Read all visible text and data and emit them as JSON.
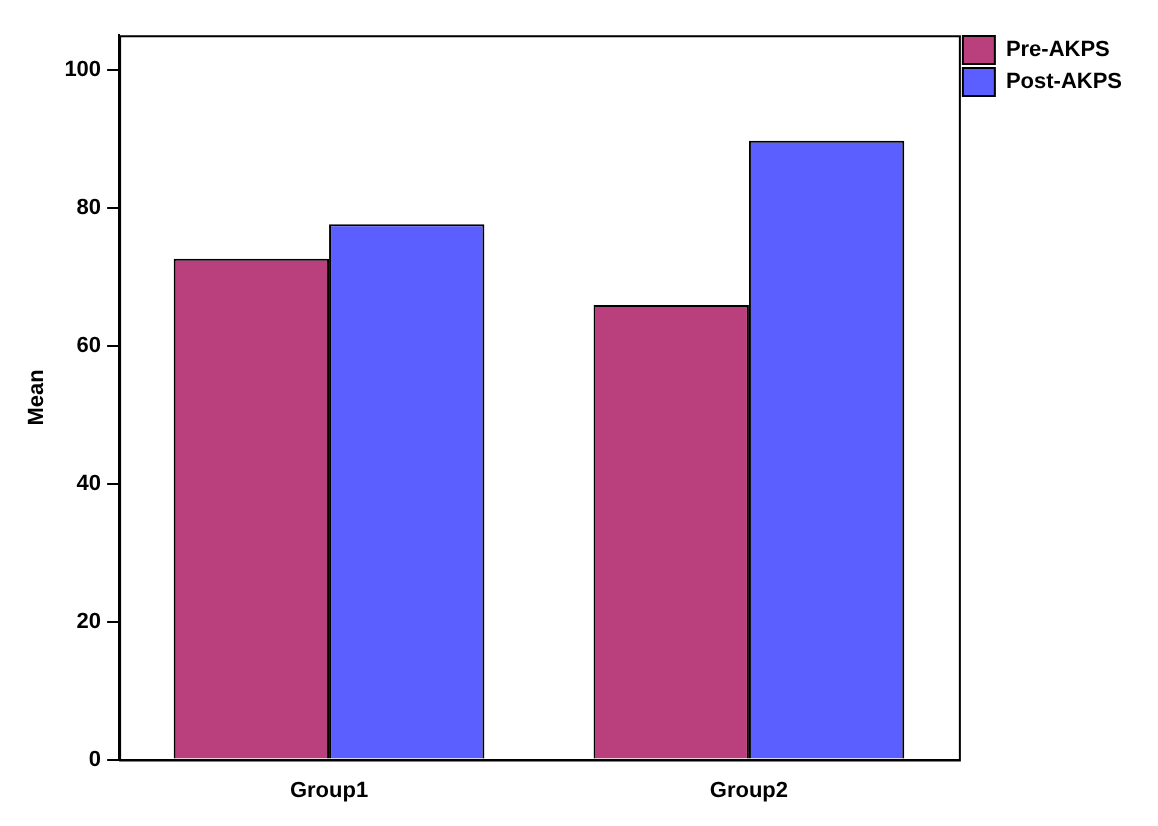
{
  "chart_data": {
    "type": "bar",
    "ylabel": "Mean",
    "categories": [
      "Group1",
      "Group2"
    ],
    "series": [
      {
        "name": "Pre-AKPS",
        "color": "#b9407c",
        "values": [
          72.6,
          65.9
        ]
      },
      {
        "name": "Post-AKPS",
        "color": "#5c5fff",
        "values": [
          77.6,
          89.7
        ]
      }
    ],
    "ylim": [
      0,
      105
    ],
    "yticks": [
      0,
      20,
      40,
      60,
      80,
      100
    ],
    "grid": false,
    "legend": "top right"
  }
}
